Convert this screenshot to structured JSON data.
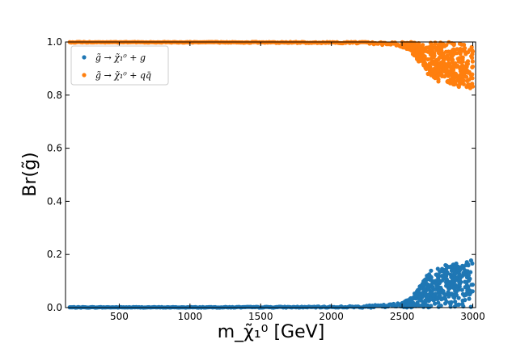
{
  "chart_data": {
    "type": "scatter",
    "xlabel": "m_χ̃₁⁰ [GeV]",
    "ylabel": "Br(g̃)",
    "xlim": [
      120,
      3020
    ],
    "ylim": [
      0,
      1.0
    ],
    "xticks": [
      500,
      1000,
      1500,
      2000,
      2500,
      3000
    ],
    "yticks": [
      0.0,
      0.2,
      0.4,
      0.6,
      0.8,
      1.0
    ],
    "xtick_labels": [
      "500",
      "1000",
      "1500",
      "2000",
      "2500",
      "3000"
    ],
    "ytick_labels": [
      "0.0",
      "0.2",
      "0.4",
      "0.6",
      "0.8",
      "1.0"
    ],
    "legend_position": "top-left",
    "series": [
      {
        "name": "g̃ → χ̃₁⁰ + g",
        "color": "#1f77b4",
        "x": [
          150,
          500,
          1000,
          1500,
          2000,
          2200,
          2400,
          2500,
          2550,
          2600,
          2650,
          2700,
          2750,
          2800,
          2850,
          2900,
          2950,
          3000
        ],
        "y_max": [
          0.002,
          0.002,
          0.002,
          0.003,
          0.004,
          0.006,
          0.012,
          0.02,
          0.03,
          0.06,
          0.1,
          0.14,
          0.15,
          0.16,
          0.16,
          0.17,
          0.17,
          0.18
        ]
      },
      {
        "name": "g̃ → χ̃₁⁰ + qq̄",
        "color": "#ff7f0e",
        "x": [
          150,
          500,
          1000,
          1500,
          2000,
          2200,
          2400,
          2500,
          2550,
          2600,
          2650,
          2700,
          2750,
          2800,
          2850,
          2900,
          2950,
          3000
        ],
        "y_min": [
          0.998,
          0.998,
          0.998,
          0.997,
          0.996,
          0.994,
          0.988,
          0.98,
          0.97,
          0.94,
          0.9,
          0.86,
          0.85,
          0.84,
          0.84,
          0.83,
          0.83,
          0.82
        ]
      }
    ]
  }
}
